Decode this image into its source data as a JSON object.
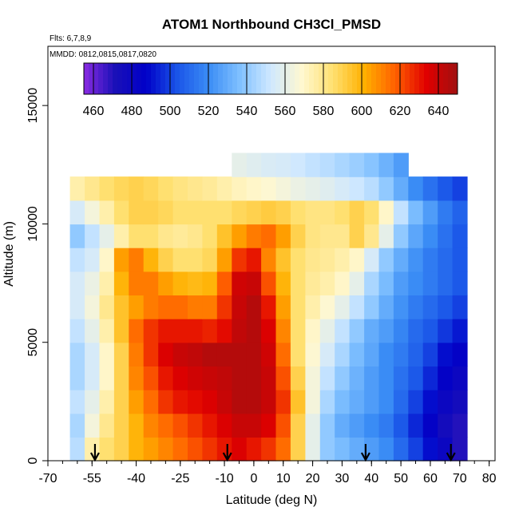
{
  "chart_data": {
    "type": "heatmap",
    "title": "ATOM1 Northbound CH3Cl_PMSD",
    "subtitle_lines": [
      "Flts: 6,7,8,9",
      "MMDD: 0812,0815,0817,0820"
    ],
    "xlabel": "Latitude (deg N)",
    "ylabel": "Altitude (m)",
    "xlim": [
      -70,
      82
    ],
    "ylim": [
      0,
      17500
    ],
    "x_tick_labels": [
      "-70",
      "-55",
      "-40",
      "-25",
      "-10",
      "0",
      "10",
      "20",
      "30",
      "40",
      "50",
      "60",
      "70",
      "80"
    ],
    "y_tick_labels": [
      "0",
      "5000",
      "10000",
      "15000"
    ],
    "colorbar": {
      "min": 455,
      "max": 650,
      "tick_labels": [
        "460",
        "480",
        "500",
        "520",
        "540",
        "560",
        "580",
        "600",
        "620",
        "640"
      ],
      "colors": [
        "#8a2be2",
        "#1a10b8",
        "#0000c8",
        "#1a55e8",
        "#3a8cf5",
        "#7fc0ff",
        "#cfe8ff",
        "#fff8d0",
        "#ffe070",
        "#ffb000",
        "#ff6000",
        "#e00000",
        "#a01010"
      ]
    },
    "latitudes": [
      -65,
      -60,
      -55,
      -50,
      -45,
      -40,
      -35,
      -30,
      -25,
      -20,
      -15,
      -10,
      -5,
      0,
      5,
      10,
      15,
      20,
      25,
      30,
      35,
      40,
      45,
      50,
      55,
      60,
      65,
      70,
      75,
      80
    ],
    "altitudes": [
      500,
      1500,
      2500,
      3500,
      4500,
      5500,
      6500,
      7500,
      8500,
      9500,
      10500,
      11500,
      12500
    ],
    "values": [
      [
        null,
        548,
        575,
        585,
        590,
        600,
        605,
        610,
        615,
        620,
        625,
        630,
        635,
        630,
        625,
        615,
        590,
        560,
        540,
        535,
        530,
        525,
        520,
        510,
        500,
        490,
        480,
        470,
        null,
        null
      ],
      [
        null,
        545,
        565,
        580,
        590,
        600,
        610,
        615,
        620,
        625,
        630,
        635,
        640,
        640,
        635,
        620,
        590,
        560,
        540,
        530,
        525,
        520,
        515,
        505,
        495,
        485,
        475,
        470,
        null,
        null
      ],
      [
        null,
        550,
        560,
        575,
        590,
        605,
        615,
        625,
        630,
        632,
        635,
        640,
        645,
        645,
        640,
        625,
        595,
        565,
        545,
        535,
        530,
        525,
        520,
        510,
        500,
        490,
        480,
        475,
        null,
        null
      ],
      [
        null,
        545,
        555,
        570,
        590,
        610,
        620,
        630,
        635,
        638,
        640,
        642,
        645,
        645,
        640,
        620,
        590,
        565,
        550,
        540,
        532,
        525,
        520,
        512,
        505,
        495,
        485,
        480,
        null,
        null
      ],
      [
        null,
        545,
        555,
        570,
        590,
        612,
        625,
        635,
        640,
        642,
        645,
        645,
        645,
        645,
        638,
        615,
        585,
        568,
        555,
        545,
        535,
        528,
        520,
        515,
        508,
        500,
        490,
        485,
        null,
        null
      ],
      [
        null,
        550,
        560,
        575,
        595,
        615,
        625,
        630,
        630,
        630,
        628,
        632,
        642,
        645,
        635,
        610,
        585,
        570,
        560,
        550,
        540,
        530,
        525,
        518,
        510,
        505,
        498,
        492,
        null,
        null
      ],
      [
        null,
        555,
        565,
        580,
        595,
        605,
        612,
        615,
        615,
        612,
        612,
        625,
        640,
        645,
        630,
        605,
        585,
        575,
        568,
        560,
        550,
        540,
        530,
        522,
        515,
        510,
        505,
        500,
        null,
        null
      ],
      [
        null,
        555,
        562,
        575,
        600,
        612,
        612,
        605,
        600,
        598,
        600,
        618,
        638,
        640,
        620,
        600,
        585,
        578,
        575,
        570,
        560,
        545,
        535,
        525,
        520,
        515,
        510,
        505,
        null,
        null
      ],
      [
        null,
        550,
        555,
        570,
        605,
        612,
        600,
        590,
        585,
        585,
        588,
        605,
        625,
        630,
        610,
        595,
        585,
        580,
        578,
        575,
        570,
        555,
        540,
        530,
        522,
        515,
        510,
        505,
        null,
        null
      ],
      [
        null,
        540,
        550,
        560,
        575,
        585,
        585,
        580,
        578,
        580,
        585,
        595,
        605,
        612,
        615,
        605,
        590,
        582,
        580,
        580,
        590,
        580,
        560,
        540,
        528,
        520,
        512,
        505,
        null,
        null
      ],
      [
        null,
        555,
        565,
        575,
        585,
        590,
        590,
        588,
        585,
        585,
        585,
        585,
        588,
        590,
        592,
        590,
        585,
        582,
        582,
        585,
        590,
        585,
        570,
        550,
        535,
        525,
        515,
        508,
        null,
        null
      ],
      [
        null,
        575,
        580,
        585,
        588,
        590,
        588,
        585,
        582,
        580,
        578,
        575,
        572,
        570,
        568,
        565,
        562,
        560,
        558,
        555,
        552,
        548,
        540,
        530,
        520,
        512,
        505,
        500,
        null,
        null
      ],
      [
        null,
        null,
        null,
        null,
        null,
        null,
        null,
        null,
        null,
        null,
        null,
        null,
        560,
        558,
        556,
        555,
        553,
        550,
        548,
        545,
        542,
        538,
        532,
        525,
        null,
        null,
        null,
        null,
        null,
        null
      ]
    ],
    "profile_markers_lat": [
      -54,
      -9,
      38,
      67
    ]
  }
}
